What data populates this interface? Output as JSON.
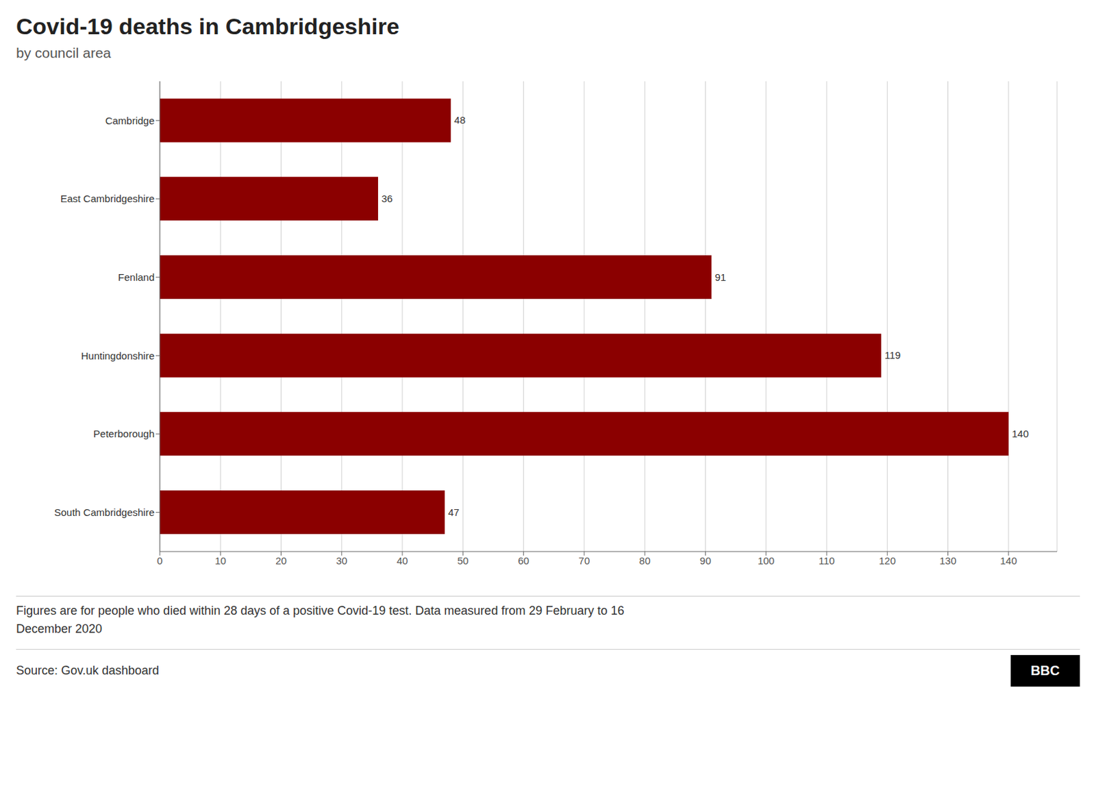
{
  "chart_data": {
    "type": "bar",
    "orientation": "horizontal",
    "title": "Covid-19 deaths in Cambridgeshire",
    "subtitle": "by council area",
    "categories": [
      "Cambridge",
      "East Cambridgeshire",
      "Fenland",
      "Huntingdonshire",
      "Peterborough",
      "South Cambridgeshire"
    ],
    "values": [
      48,
      36,
      91,
      119,
      140,
      47
    ],
    "color": "#8B0000",
    "xlim": [
      0,
      148
    ],
    "xticks": [
      0,
      10,
      20,
      30,
      40,
      50,
      60,
      70,
      80,
      90,
      100,
      110,
      120,
      130,
      140
    ],
    "grid": true,
    "data_labels": true,
    "footnote": "Figures are for people who died within 28 days of a positive Covid-19 test. Data measured from 29 February to 16\nDecember 2020",
    "source": "Source: Gov.uk dashboard",
    "annotations": [
      "BBC"
    ]
  }
}
